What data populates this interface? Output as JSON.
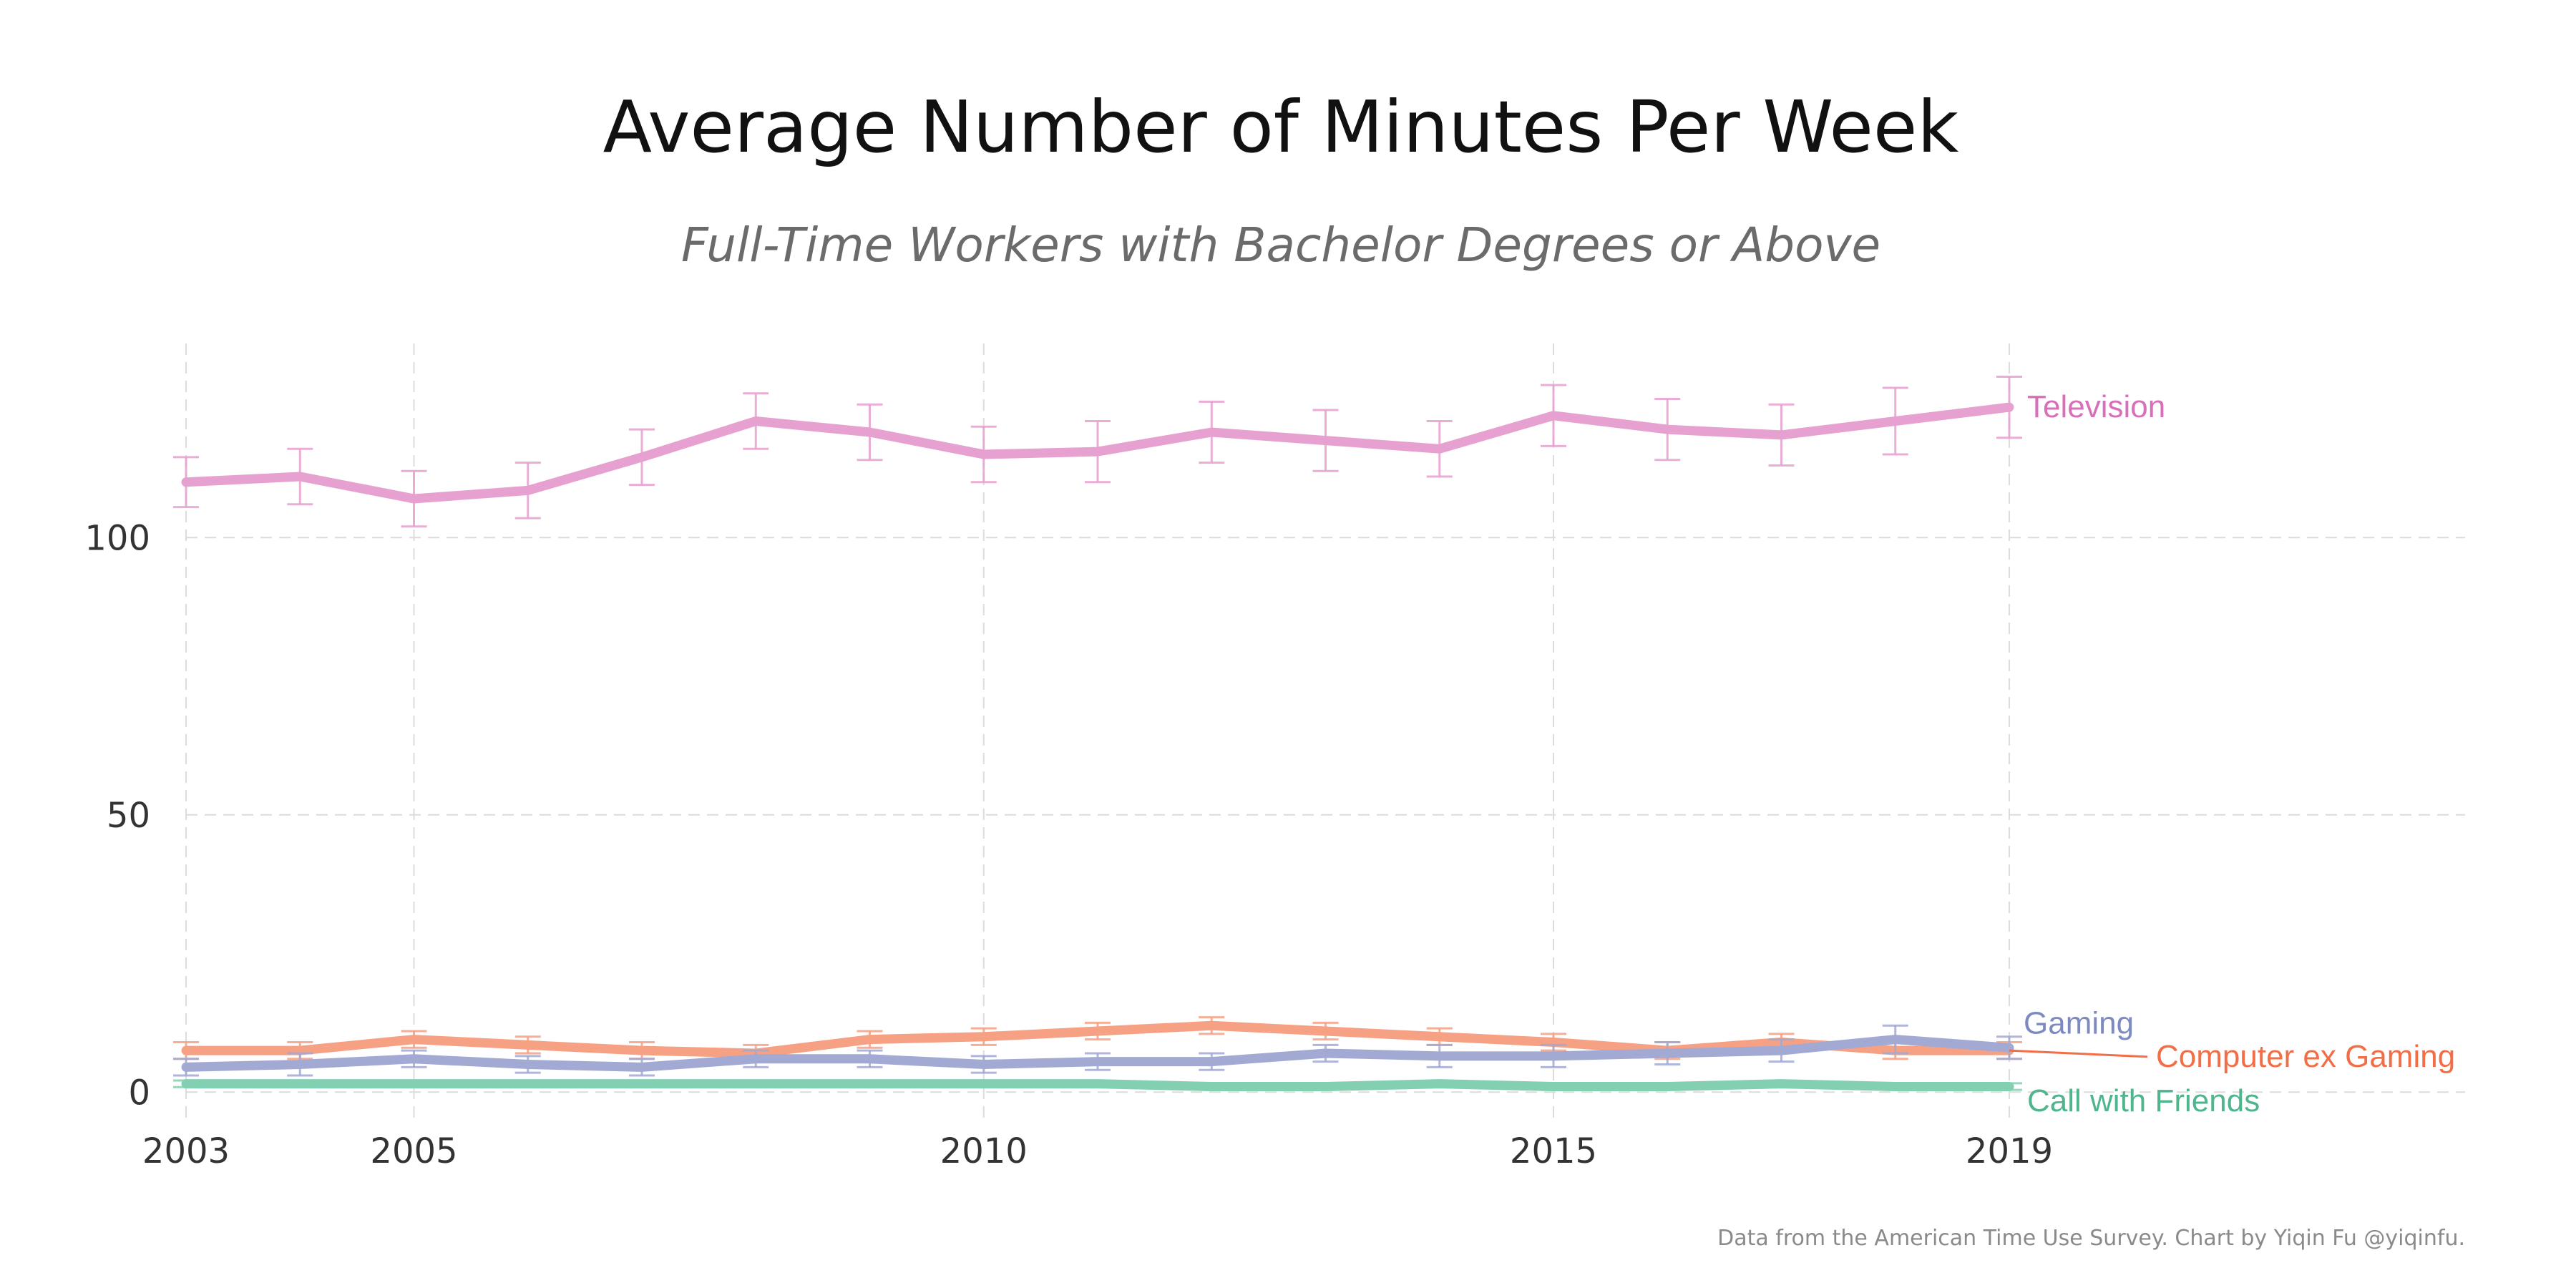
{
  "chart_data": {
    "type": "line",
    "title": "Average Number of Minutes Per Week",
    "subtitle": "Full-Time Workers with Bachelor Degrees or Above",
    "caption": "Data from the American Time Use Survey. Chart by Yiqin Fu @yiqinfu.",
    "x_ticks": [
      2003,
      2005,
      2010,
      2015,
      2019
    ],
    "y_ticks": [
      0,
      50,
      100
    ],
    "xlim": [
      2003,
      2023
    ],
    "ylim": [
      -5,
      135
    ],
    "grid": true,
    "legend": "direct-labels-right",
    "x": [
      2003,
      2004,
      2005,
      2006,
      2007,
      2008,
      2009,
      2010,
      2011,
      2012,
      2013,
      2014,
      2015,
      2016,
      2017,
      2018,
      2019
    ],
    "series": [
      {
        "name": "Television",
        "color": "#e7a1d0",
        "label_color": "#d86fb9",
        "values": [
          110,
          111,
          107,
          108.5,
          114.5,
          121,
          119,
          115,
          115.5,
          119,
          117.5,
          116,
          122,
          119.5,
          118.5,
          121,
          123.5
        ],
        "err": [
          4.5,
          5,
          5,
          5,
          5,
          5,
          5,
          5,
          5.5,
          5.5,
          5.5,
          5,
          5.5,
          5.5,
          5.5,
          6,
          5.5
        ]
      },
      {
        "name": "Computer ex Gaming",
        "color": "#f6a184",
        "label_color": "#f26e47",
        "values": [
          7.5,
          7.5,
          9.5,
          8.5,
          7.5,
          7,
          9.5,
          10,
          11,
          12,
          11,
          10,
          9,
          7.5,
          9,
          7.5,
          7.5
        ],
        "err": [
          1.5,
          1.5,
          1.5,
          1.5,
          1.5,
          1.5,
          1.5,
          1.5,
          1.5,
          1.5,
          1.5,
          1.5,
          1.5,
          1.5,
          1.5,
          1.5,
          1.5
        ]
      },
      {
        "name": "Gaming",
        "color": "#a2aad4",
        "label_color": "#7d8ac0",
        "values": [
          4.5,
          5,
          6,
          5,
          4.5,
          6,
          6,
          5,
          5.5,
          5.5,
          7,
          6.5,
          6.5,
          7,
          7.5,
          9.5,
          8
        ],
        "err": [
          1.5,
          2,
          1.5,
          1.5,
          1.5,
          1.5,
          1.5,
          1.5,
          1.5,
          1.5,
          1.5,
          2,
          2,
          2,
          2,
          2.5,
          2
        ]
      },
      {
        "name": "Call with Friends",
        "color": "#83cfb2",
        "label_color": "#4fb58c",
        "values": [
          1.5,
          1.5,
          1.5,
          1.5,
          1.5,
          1.5,
          1.5,
          1.5,
          1.5,
          1,
          1,
          1.5,
          1,
          1,
          1.5,
          1,
          1
        ],
        "err": [
          0.6,
          0.6,
          0.6,
          0.6,
          0.6,
          0.6,
          0.6,
          0.6,
          0.6,
          0.6,
          0.6,
          0.6,
          0.6,
          0.6,
          0.6,
          0.6,
          0.6
        ]
      }
    ]
  }
}
